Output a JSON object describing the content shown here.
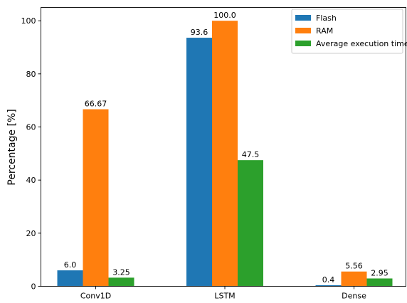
{
  "chart_data": {
    "type": "bar",
    "title": "",
    "xlabel": "",
    "ylabel": "Percentage [%]",
    "categories": [
      "Conv1D",
      "LSTM",
      "Dense"
    ],
    "series": [
      {
        "name": "Flash",
        "color": "#1f77b4",
        "values": [
          6.0,
          93.6,
          0.4
        ],
        "labels": [
          "6.0",
          "93.6",
          "0.4"
        ]
      },
      {
        "name": "RAM",
        "color": "#ff7f0e",
        "values": [
          66.67,
          100.0,
          5.56
        ],
        "labels": [
          "66.67",
          "100.0",
          "5.56"
        ]
      },
      {
        "name": "Average execution time",
        "color": "#2ca02c",
        "values": [
          3.25,
          47.5,
          2.95
        ],
        "labels": [
          "3.25",
          "47.5",
          "2.95"
        ]
      }
    ],
    "ylim": [
      0,
      105
    ],
    "yticks": [
      0,
      20,
      40,
      60,
      80,
      100
    ],
    "ytick_labels": [
      "0",
      "20",
      "40",
      "60",
      "80",
      "100"
    ],
    "grid": false,
    "legend_position": "top-right"
  }
}
